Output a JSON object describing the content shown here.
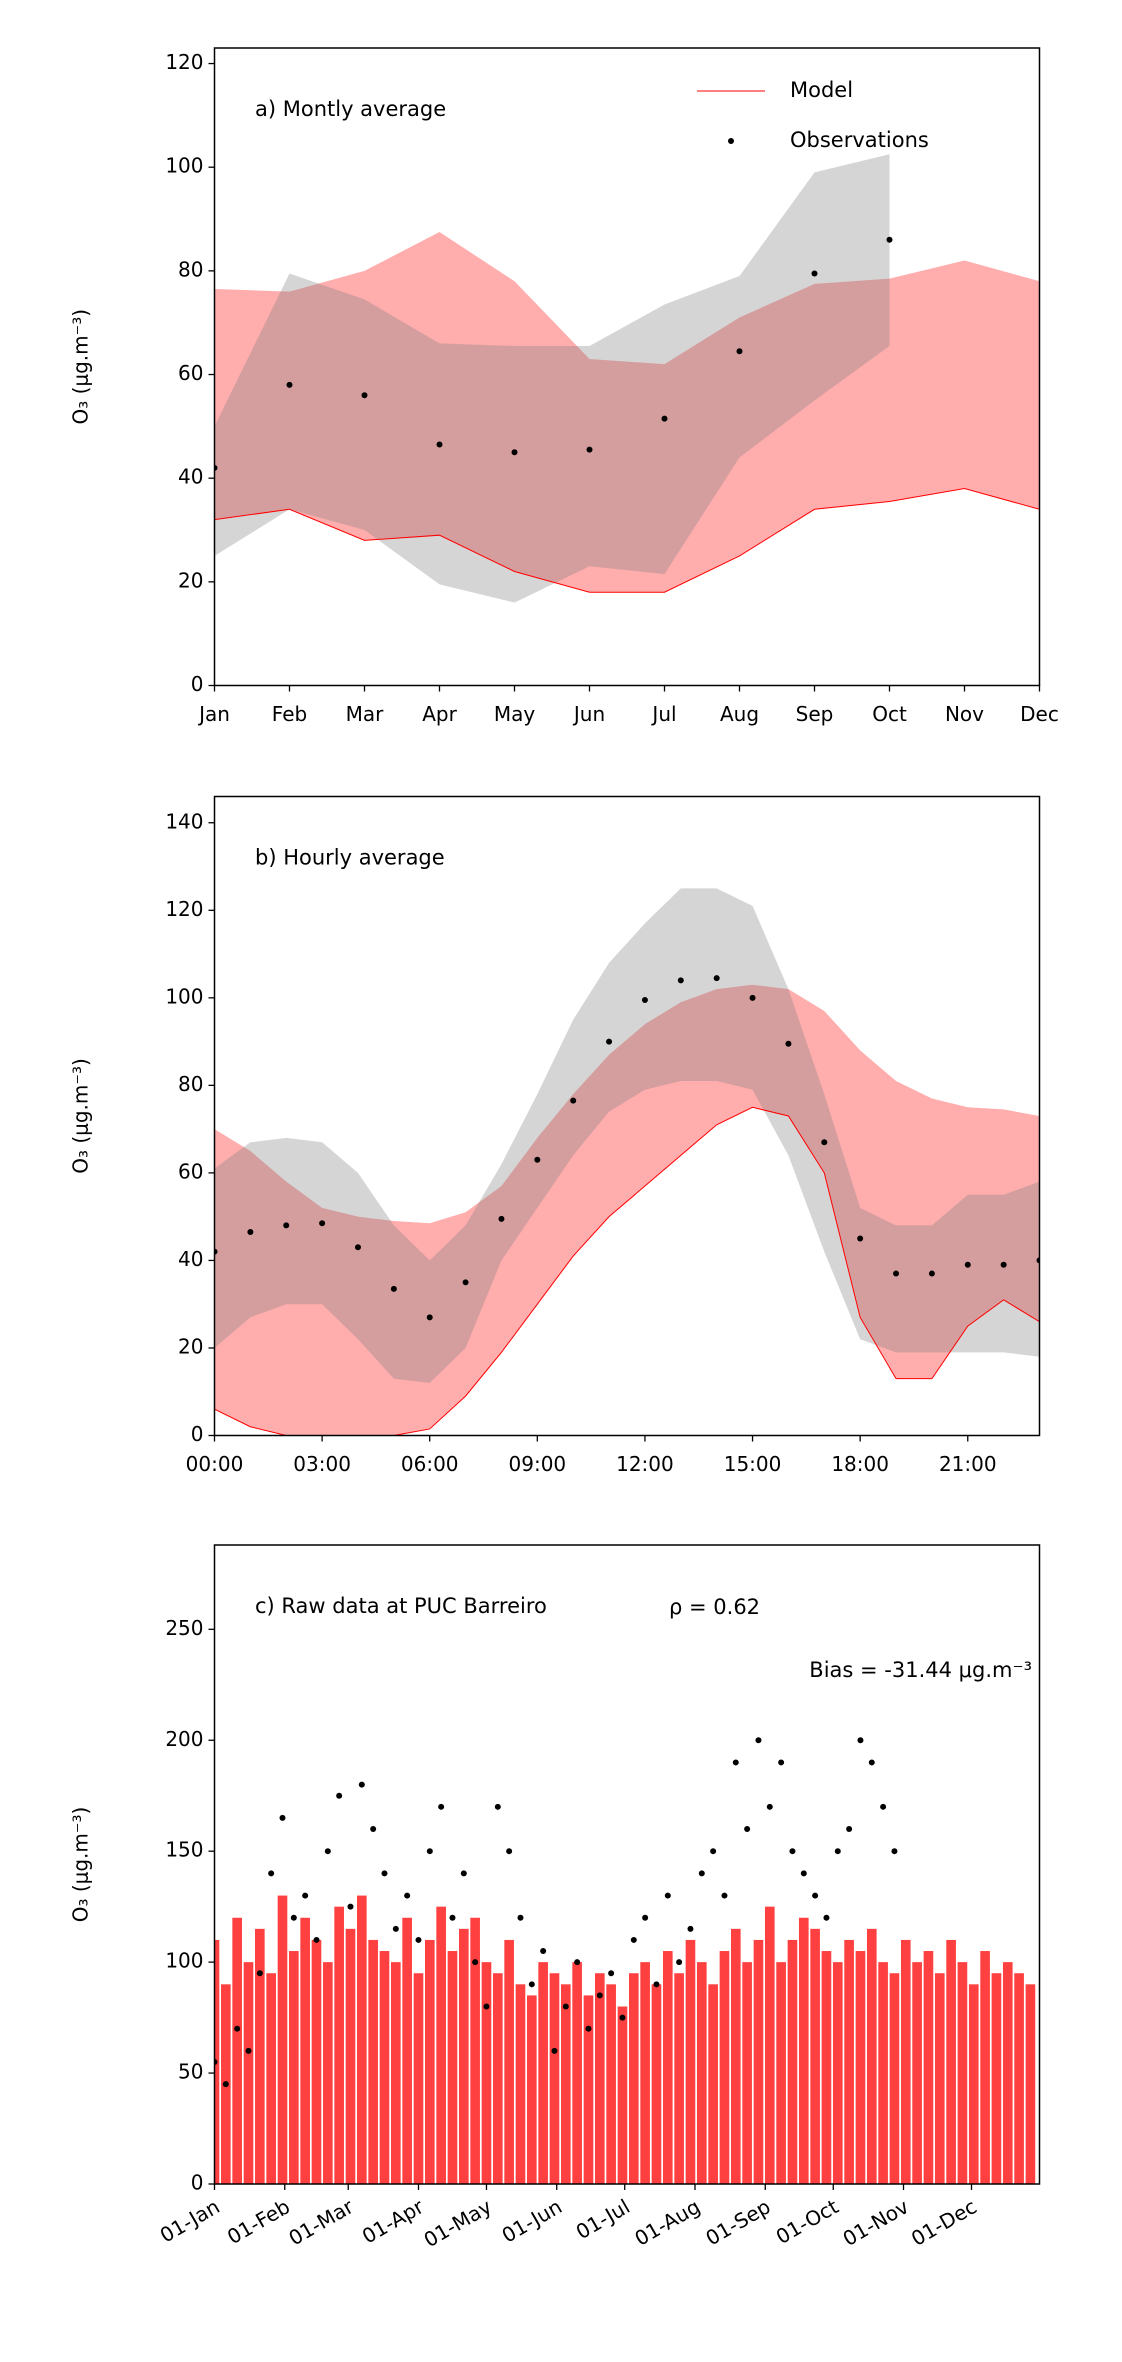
{
  "chart_data": [
    {
      "type": "band",
      "annotation": "a) Montly average",
      "ylabel": "O₃ (μg.m⁻³)",
      "categories": [
        "Jan",
        "Feb",
        "Mar",
        "Apr",
        "May",
        "Jun",
        "Jul",
        "Aug",
        "Sep",
        "Oct",
        "Nov",
        "Dec"
      ],
      "ylim": [
        0,
        123
      ],
      "yticks": [
        0,
        20,
        40,
        60,
        80,
        100,
        120
      ],
      "legend": "upper right",
      "series": [
        {
          "name": "Model",
          "color": "#ff0000",
          "values": [
            32,
            34,
            28,
            29,
            22,
            18,
            18,
            25,
            34,
            35.5,
            38,
            34
          ],
          "band_lower": [
            32,
            34,
            28,
            29,
            22,
            18,
            18,
            25,
            34,
            35.5,
            38,
            34
          ],
          "band_upper": [
            76.5,
            76,
            80,
            87.5,
            78,
            63,
            62,
            71,
            77.5,
            78.5,
            82,
            78
          ]
        },
        {
          "name": "Observations",
          "color": "#000000",
          "values": [
            42,
            58,
            56,
            46.5,
            45,
            45.5,
            51.5,
            64.5,
            79.5,
            86,
            null,
            null
          ],
          "band_lower": [
            25,
            34,
            30,
            19.5,
            16,
            23,
            21.5,
            44,
            55,
            65.5,
            null,
            null
          ],
          "band_upper": [
            50,
            79.5,
            74.5,
            66,
            65.5,
            65.5,
            73.5,
            79,
            99,
            102.5,
            null,
            null
          ]
        }
      ]
    },
    {
      "type": "band",
      "annotation": "b) Hourly average",
      "ylabel": "O₃ (μg.m⁻³)",
      "categories": [
        "00:00",
        null,
        null,
        "03:00",
        null,
        null,
        "06:00",
        null,
        null,
        "09:00",
        null,
        null,
        "12:00",
        null,
        null,
        "15:00",
        null,
        null,
        "18:00",
        null,
        null,
        "21:00",
        null,
        null
      ],
      "ylim": [
        0,
        146
      ],
      "yticks": [
        0,
        20,
        40,
        60,
        80,
        100,
        120,
        140
      ],
      "series": [
        {
          "name": "Model",
          "color": "#ff0000",
          "values": [
            6,
            2,
            0,
            0,
            0,
            0,
            1.5,
            9,
            19,
            30,
            41,
            50,
            57,
            64,
            71,
            75,
            73,
            60,
            27,
            13,
            13,
            25,
            31,
            26
          ],
          "band_lower": [
            6,
            2,
            0,
            0,
            0,
            0,
            1.5,
            9,
            19,
            30,
            41,
            50,
            57,
            64,
            71,
            75,
            73,
            60,
            27,
            13,
            13,
            25,
            31,
            26
          ],
          "band_upper": [
            70,
            65,
            58,
            52,
            50,
            49,
            48.5,
            51,
            57,
            68,
            78,
            87,
            94,
            99,
            102,
            103,
            102,
            97,
            88,
            81,
            77,
            75,
            74.5,
            73
          ]
        },
        {
          "name": "Observations",
          "color": "#000000",
          "values": [
            42,
            46.5,
            48,
            48.5,
            43,
            33.5,
            27,
            35,
            49.5,
            63,
            76.5,
            90,
            99.5,
            104,
            104.5,
            100,
            89.5,
            67,
            45,
            37,
            37,
            39,
            39,
            40
          ],
          "band_lower": [
            20,
            27,
            30,
            30,
            22,
            13,
            12,
            20,
            40,
            52,
            64,
            74,
            79,
            81,
            81,
            79,
            64,
            42,
            22,
            19,
            19,
            19,
            19,
            18
          ],
          "band_upper": [
            61,
            67,
            68,
            67,
            60,
            48,
            40,
            48,
            62,
            78,
            95,
            108,
            117,
            125,
            125,
            121,
            102,
            78,
            52,
            48,
            48,
            55,
            55,
            58
          ]
        }
      ]
    },
    {
      "type": "scatter",
      "annotation": "c) Raw data at PUC Barreiro",
      "correlation": "ρ = 0.62",
      "bias": "Bias = -31.44 μg.m⁻³",
      "ylabel": "O₃ (μg.m⁻³)",
      "ylim": [
        0,
        288
      ],
      "yticks": [
        0,
        50,
        100,
        150,
        200,
        250
      ],
      "xlim": [
        "01-Jan",
        "31-Dec"
      ],
      "xticks": [
        "01-Jan",
        "01-Feb",
        "01-Mar",
        "01-Apr",
        "01-May",
        "01-Jun",
        "01-Jul",
        "01-Aug",
        "01-Sep",
        "01-Oct",
        "01-Nov",
        "01-Dec"
      ],
      "x": [
        "01-Jan",
        "06-Jan",
        "11-Jan",
        "16-Jan",
        "21-Jan",
        "26-Jan",
        "31-Jan",
        "05-Feb",
        "10-Feb",
        "15-Feb",
        "20-Feb",
        "25-Feb",
        "02-Mar",
        "07-Mar",
        "12-Mar",
        "17-Mar",
        "22-Mar",
        "27-Mar",
        "01-Apr",
        "06-Apr",
        "11-Apr",
        "16-Apr",
        "21-Apr",
        "26-Apr",
        "01-May",
        "06-May",
        "11-May",
        "16-May",
        "21-May",
        "26-May",
        "31-May",
        "05-Jun",
        "10-Jun",
        "15-Jun",
        "20-Jun",
        "25-Jun",
        "30-Jun",
        "05-Jul",
        "10-Jul",
        "15-Jul",
        "20-Jul",
        "25-Jul",
        "30-Jul",
        "04-Aug",
        "09-Aug",
        "14-Aug",
        "19-Aug",
        "24-Aug",
        "29-Aug",
        "03-Sep",
        "08-Sep",
        "13-Sep",
        "18-Sep",
        "23-Sep",
        "28-Sep",
        "03-Oct",
        "08-Oct",
        "13-Oct",
        "18-Oct",
        "23-Oct",
        "28-Oct",
        "02-Nov",
        "07-Nov",
        "12-Nov",
        "17-Nov",
        "22-Nov",
        "27-Nov",
        "02-Dec",
        "07-Dec",
        "12-Dec",
        "17-Dec",
        "22-Dec",
        "27-Dec"
      ],
      "series": [
        {
          "name": "Model",
          "color": "#ff0000",
          "values": [
            110,
            90,
            120,
            100,
            115,
            95,
            130,
            105,
            120,
            110,
            100,
            125,
            115,
            130,
            110,
            105,
            100,
            120,
            95,
            110,
            125,
            105,
            115,
            120,
            100,
            95,
            110,
            90,
            85,
            100,
            95,
            90,
            100,
            85,
            95,
            90,
            80,
            95,
            100,
            90,
            105,
            95,
            110,
            100,
            90,
            105,
            115,
            100,
            110,
            125,
            100,
            110,
            120,
            115,
            105,
            100,
            110,
            105,
            115,
            100,
            95,
            110,
            100,
            105,
            95,
            110,
            100,
            90,
            105,
            95,
            100,
            95,
            90
          ]
        },
        {
          "name": "Observations",
          "color": "#000000",
          "values": [
            55,
            45,
            70,
            60,
            95,
            140,
            165,
            120,
            130,
            110,
            150,
            175,
            125,
            180,
            160,
            140,
            115,
            130,
            110,
            150,
            170,
            120,
            140,
            100,
            80,
            170,
            150,
            120,
            90,
            105,
            60,
            80,
            100,
            70,
            85,
            95,
            75,
            110,
            120,
            90,
            130,
            100,
            115,
            140,
            150,
            130,
            190,
            160,
            200,
            170,
            190,
            150,
            140,
            130,
            120,
            150,
            160,
            200,
            190,
            170,
            150,
            null,
            null,
            null,
            null,
            null,
            null,
            null,
            null,
            null,
            null,
            null,
            null
          ]
        }
      ]
    }
  ]
}
